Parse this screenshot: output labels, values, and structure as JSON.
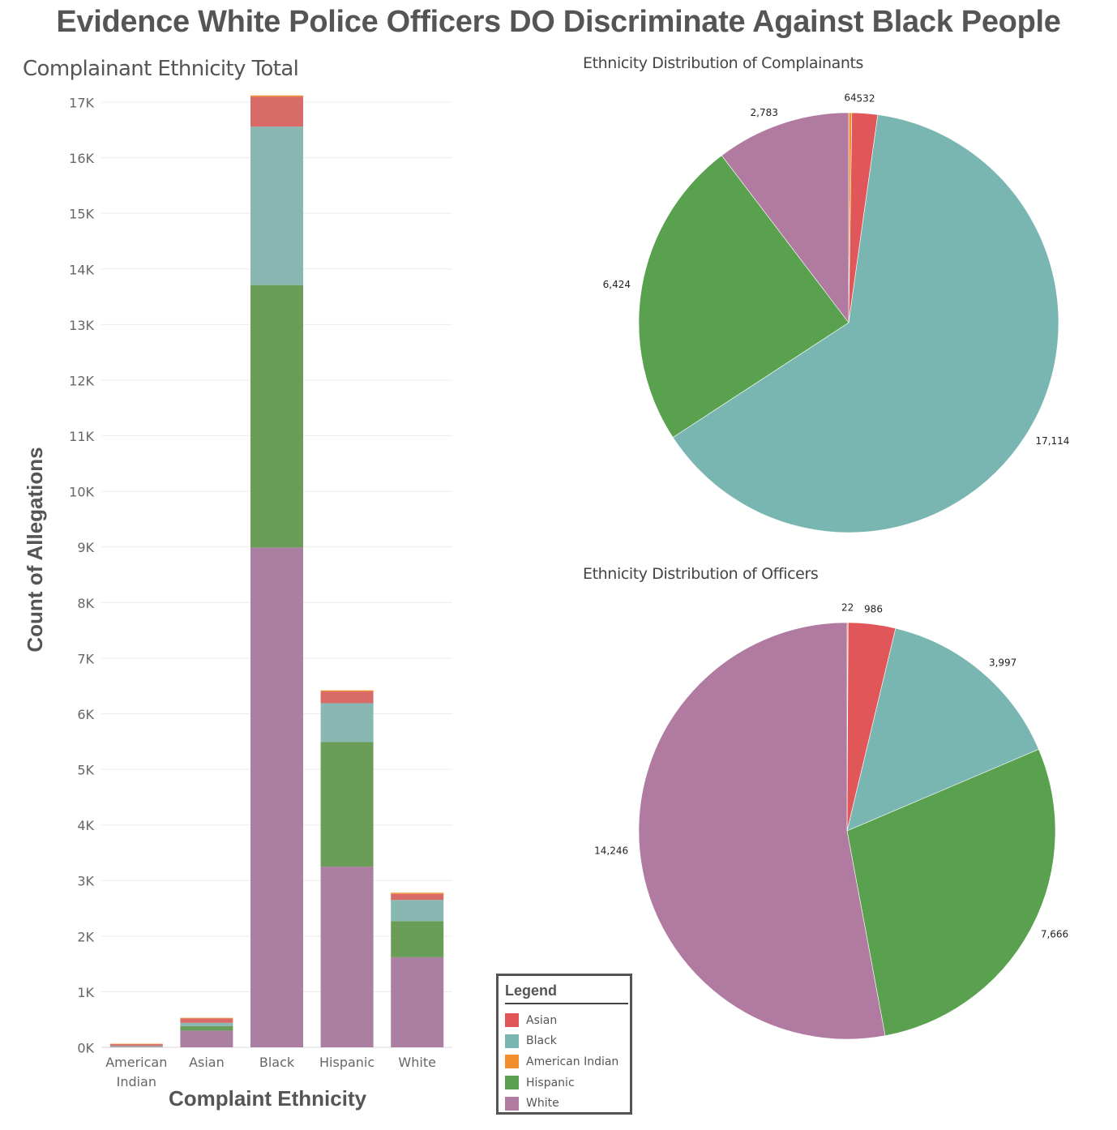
{
  "page_title": "Evidence White Police Officers DO Discriminate Against Black People",
  "legend": {
    "title": "Legend",
    "items": [
      {
        "label": "Asian",
        "color": "#e15759"
      },
      {
        "label": "Black",
        "color": "#7ab6b1"
      },
      {
        "label": "American Indian",
        "color": "#f28e2b"
      },
      {
        "label": "Hispanic",
        "color": "#59a14f"
      },
      {
        "label": "White",
        "color": "#b07aa1"
      }
    ]
  },
  "chart_data": [
    {
      "type": "bar",
      "stacked": true,
      "title": "Complainant Ethnicity Total",
      "xlabel": "Complaint Ethnicity",
      "ylabel": "Count of Allegations",
      "categories": [
        "American Indian",
        "Asian",
        "Black",
        "Hispanic",
        "White"
      ],
      "ylim": [
        0,
        17000
      ],
      "yticks": [
        "0K",
        "1K",
        "2K",
        "3K",
        "4K",
        "5K",
        "6K",
        "7K",
        "8K",
        "9K",
        "10K",
        "11K",
        "12K",
        "13K",
        "14K",
        "15K",
        "16K",
        "17K"
      ],
      "grid": true,
      "series": [
        {
          "name": "White",
          "color": "#ab7fa1",
          "values": [
            10,
            300,
            8990,
            3250,
            1620
          ]
        },
        {
          "name": "Hispanic",
          "color": "#6a9e58",
          "values": [
            3,
            80,
            4720,
            2240,
            650
          ]
        },
        {
          "name": "Black",
          "color": "#89b7b1",
          "values": [
            14,
            60,
            2850,
            700,
            380
          ]
        },
        {
          "name": "Asian",
          "color": "#d86b67",
          "values": [
            30,
            80,
            540,
            210,
            110
          ]
        },
        {
          "name": "American Indian",
          "color": "#f28e2b",
          "values": [
            7,
            10,
            20,
            20,
            20
          ]
        }
      ]
    },
    {
      "type": "pie",
      "title": "Ethnicity Distribution of Complainants",
      "slices": [
        {
          "name": "American Indian",
          "value": 64,
          "label": "64",
          "color": "#f28e2b"
        },
        {
          "name": "Asian",
          "value": 532,
          "label": "532",
          "color": "#e15759"
        },
        {
          "name": "Black",
          "value": 17114,
          "label": "17,114",
          "color": "#7ab6b1"
        },
        {
          "name": "Hispanic",
          "value": 6424,
          "label": "6,424",
          "color": "#59a14f"
        },
        {
          "name": "White",
          "value": 2783,
          "label": "2,783",
          "color": "#b07aa1"
        }
      ]
    },
    {
      "type": "pie",
      "title": "Ethnicity Distribution of Officers",
      "slices": [
        {
          "name": "American Indian",
          "value": 22,
          "label": "22",
          "color": "#f28e2b"
        },
        {
          "name": "Asian",
          "value": 986,
          "label": "986",
          "color": "#e15759"
        },
        {
          "name": "Black",
          "value": 3997,
          "label": "3,997",
          "color": "#7ab6b1"
        },
        {
          "name": "Hispanic",
          "value": 7666,
          "label": "7,666",
          "color": "#59a14f"
        },
        {
          "name": "White",
          "value": 14246,
          "label": "14,246",
          "color": "#b07aa1"
        }
      ]
    }
  ]
}
